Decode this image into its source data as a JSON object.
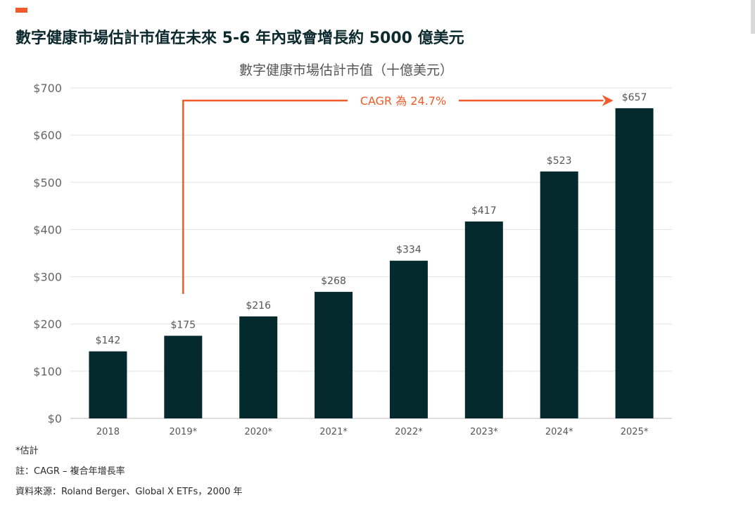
{
  "page": {
    "heading": "數字健康市場估計市值在未來 5-6 年內或會增長約 5000 億美元",
    "accent_color": "#f15a29"
  },
  "chart_data": {
    "type": "bar",
    "title": "數字健康市場估計市值（十億美元）",
    "categories": [
      "2018",
      "2019*",
      "2020*",
      "2021*",
      "2022*",
      "2023*",
      "2024*",
      "2025*"
    ],
    "values": [
      142,
      175,
      216,
      268,
      334,
      417,
      523,
      657
    ],
    "value_labels": [
      "$142",
      "$175",
      "$216",
      "$268",
      "$334",
      "$417",
      "$523",
      "$657"
    ],
    "ylim": [
      0,
      700
    ],
    "yticks": [
      0,
      100,
      200,
      300,
      400,
      500,
      600,
      700
    ],
    "ytick_labels": [
      "$0",
      "$100",
      "$200",
      "$300",
      "$400",
      "$500",
      "$600",
      "$700"
    ],
    "xlabel": "",
    "ylabel": "",
    "grid": true,
    "bar_color": "#042a2e",
    "annotation": {
      "text": "CAGR 為 24.7%",
      "color": "#f15a29",
      "from_category": "2019*",
      "to_category": "2025*"
    }
  },
  "notes": {
    "estimate": "*估計",
    "cagr": "註：CAGR – 複合年增長率",
    "source": "資料來源：Roland Berger、Global X ETFs，2000 年"
  }
}
